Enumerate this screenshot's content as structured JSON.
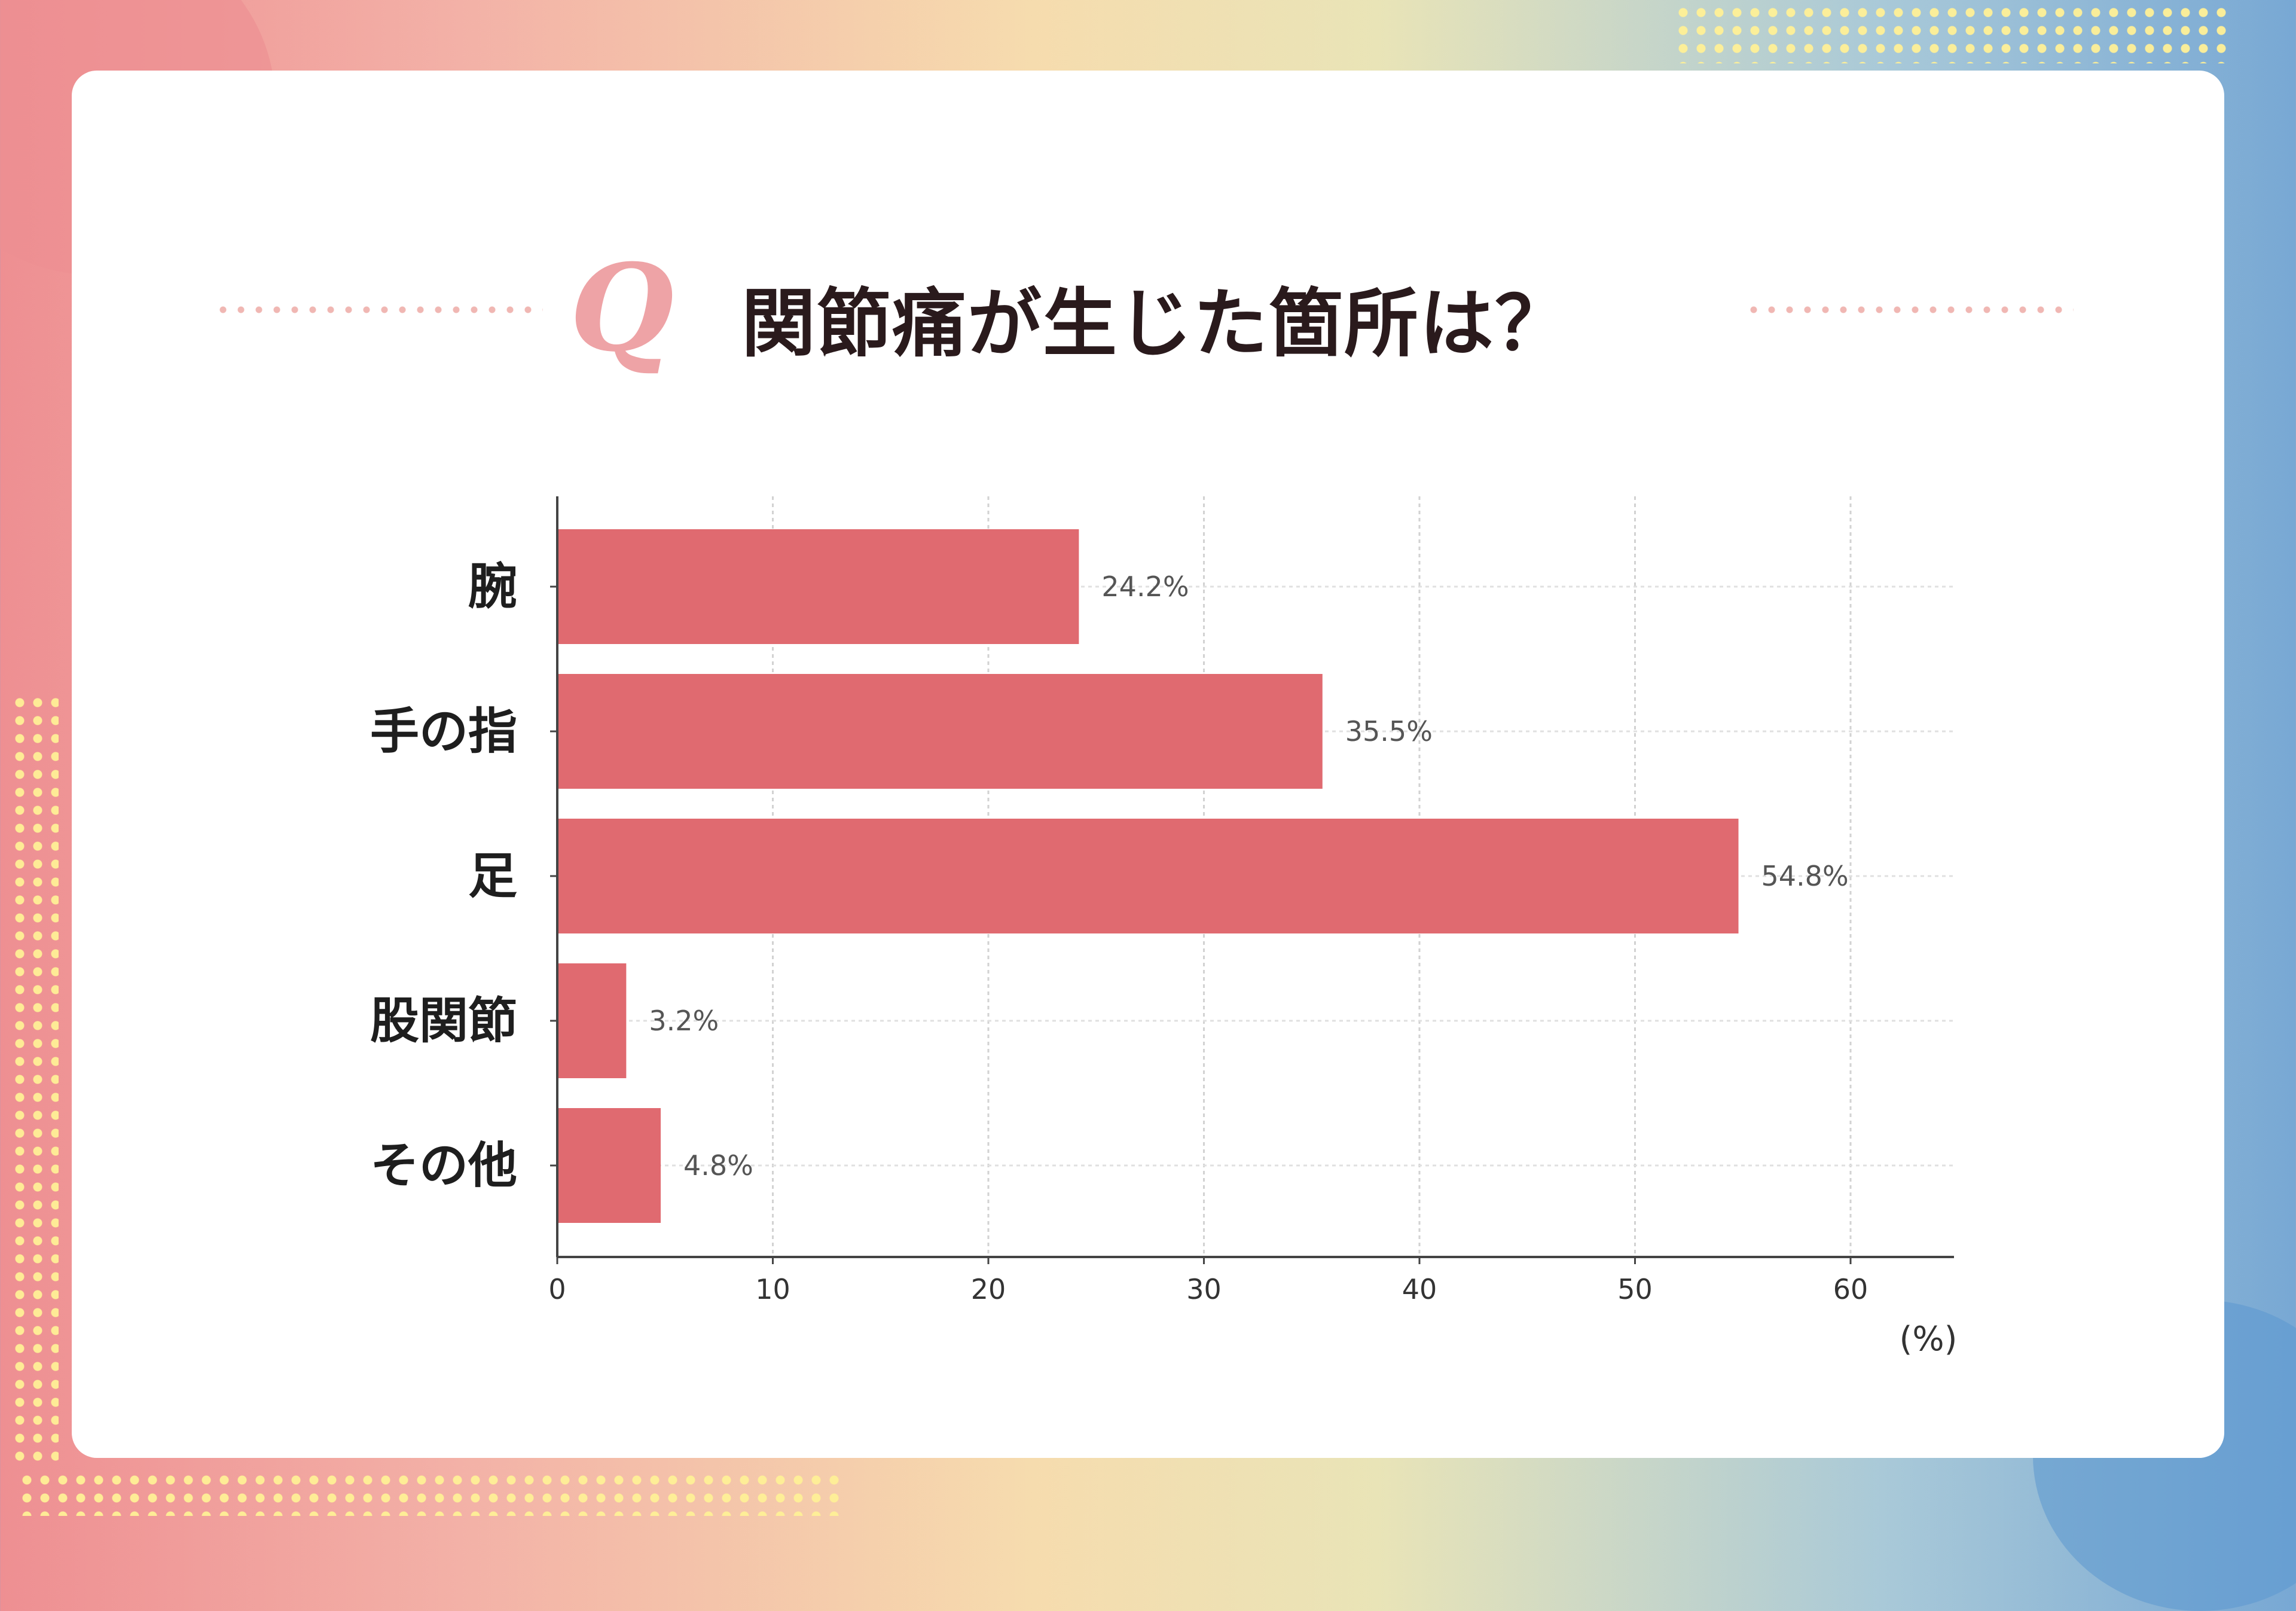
{
  "title": "関節痛が生じた箇所は？",
  "q_mark": "Q",
  "colors": {
    "bar": "#e06a70",
    "accent": "#eea3a6"
  },
  "chart_data": {
    "type": "bar",
    "orientation": "horizontal",
    "categories": [
      "腕",
      "手の指",
      "足",
      "股関節",
      "その他"
    ],
    "values": [
      24.2,
      35.5,
      54.8,
      3.2,
      4.8
    ],
    "value_labels": [
      "24.2%",
      "35.5%",
      "54.8%",
      "3.2%",
      "4.8%"
    ],
    "xticks": [
      0,
      10,
      20,
      30,
      40,
      50,
      60
    ],
    "xlim": [
      0,
      65
    ],
    "unit_label": "(%)",
    "grid": true
  }
}
